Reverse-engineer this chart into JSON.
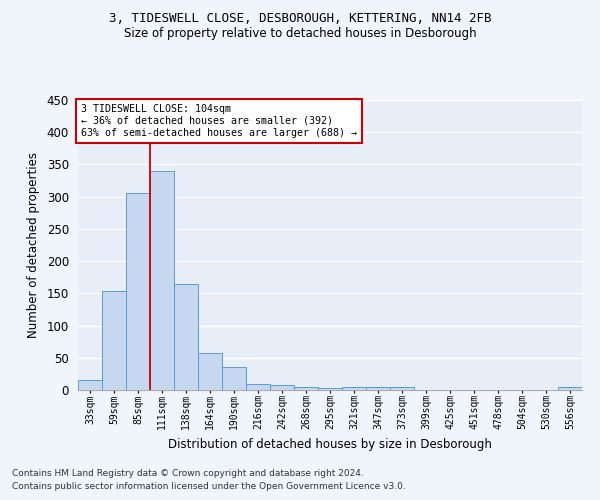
{
  "title1": "3, TIDESWELL CLOSE, DESBOROUGH, KETTERING, NN14 2FB",
  "title2": "Size of property relative to detached houses in Desborough",
  "xlabel": "Distribution of detached houses by size in Desborough",
  "ylabel": "Number of detached properties",
  "footnote1": "Contains HM Land Registry data © Crown copyright and database right 2024.",
  "footnote2": "Contains public sector information licensed under the Open Government Licence v3.0.",
  "categories": [
    "33sqm",
    "59sqm",
    "85sqm",
    "111sqm",
    "138sqm",
    "164sqm",
    "190sqm",
    "216sqm",
    "242sqm",
    "268sqm",
    "295sqm",
    "321sqm",
    "347sqm",
    "373sqm",
    "399sqm",
    "425sqm",
    "451sqm",
    "478sqm",
    "504sqm",
    "530sqm",
    "556sqm"
  ],
  "values": [
    15,
    153,
    305,
    340,
    165,
    57,
    35,
    10,
    8,
    5,
    3,
    5,
    5,
    5,
    0,
    0,
    0,
    0,
    0,
    0,
    4
  ],
  "bar_color": "#c5d8f0",
  "bar_edge_color": "#5b9bd5",
  "background_color": "#e8eef8",
  "grid_color": "#ffffff",
  "annotation_text1": "3 TIDESWELL CLOSE: 104sqm",
  "annotation_text2": "← 36% of detached houses are smaller (392)",
  "annotation_text3": "63% of semi-detached houses are larger (688) →",
  "annotation_box_color": "#ffffff",
  "annotation_box_edge_color": "#cc0000",
  "red_line_color": "#cc0000",
  "fig_bg_color": "#f0f4fb",
  "ylim": [
    0,
    450
  ],
  "yticks": [
    0,
    50,
    100,
    150,
    200,
    250,
    300,
    350,
    400,
    450
  ]
}
